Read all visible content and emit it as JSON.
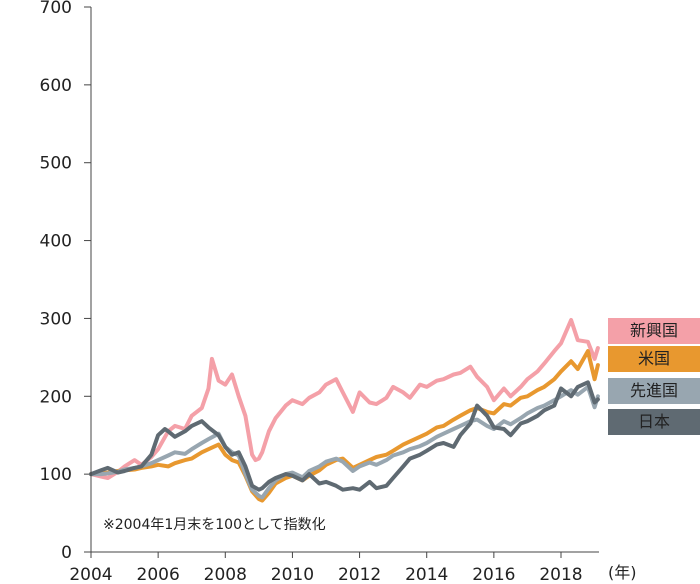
{
  "chart_data": {
    "type": "line",
    "ylim": [
      0,
      700
    ],
    "yticks": [
      "0",
      "100",
      "200",
      "300",
      "400",
      "500",
      "600",
      "700"
    ],
    "xlim": [
      2004.0,
      2019.1
    ],
    "xticks": [
      "2004",
      "2006",
      "2008",
      "2010",
      "2012",
      "2014",
      "2016",
      "2018"
    ],
    "x_unit": "(年)",
    "note": "※2004年1月末を100として指数化",
    "legend": "right",
    "series": [
      {
        "name": "新興国",
        "color": "#f4a0a8",
        "x": [
          2004.0,
          2004.3,
          2004.5,
          2004.8,
          2005.0,
          2005.3,
          2005.5,
          2005.8,
          2006.0,
          2006.3,
          2006.5,
          2006.8,
          2007.0,
          2007.3,
          2007.5,
          2007.6,
          2007.8,
          2008.0,
          2008.2,
          2008.4,
          2008.6,
          2008.8,
          2008.9,
          2009.0,
          2009.1,
          2009.3,
          2009.5,
          2009.8,
          2010.0,
          2010.3,
          2010.5,
          2010.8,
          2011.0,
          2011.3,
          2011.5,
          2011.8,
          2012.0,
          2012.3,
          2012.5,
          2012.8,
          2013.0,
          2013.3,
          2013.5,
          2013.8,
          2014.0,
          2014.3,
          2014.5,
          2014.8,
          2015.0,
          2015.3,
          2015.5,
          2015.8,
          2016.0,
          2016.3,
          2016.5,
          2016.8,
          2017.0,
          2017.3,
          2017.5,
          2017.8,
          2018.0,
          2018.3,
          2018.5,
          2018.8,
          2019.0,
          2019.1
        ],
        "values": [
          100,
          97,
          95,
          103,
          110,
          118,
          112,
          122,
          132,
          155,
          162,
          158,
          175,
          185,
          210,
          248,
          220,
          215,
          228,
          200,
          175,
          125,
          118,
          120,
          128,
          155,
          172,
          188,
          195,
          190,
          198,
          205,
          215,
          222,
          205,
          180,
          205,
          192,
          190,
          198,
          212,
          205,
          198,
          215,
          212,
          220,
          222,
          228,
          230,
          238,
          225,
          212,
          195,
          210,
          200,
          212,
          222,
          232,
          242,
          258,
          268,
          298,
          272,
          270,
          248,
          262
        ]
      },
      {
        "name": "米国",
        "color": "#e8982f",
        "x": [
          2004.0,
          2004.3,
          2004.5,
          2004.8,
          2005.0,
          2005.3,
          2005.5,
          2005.8,
          2006.0,
          2006.3,
          2006.5,
          2006.8,
          2007.0,
          2007.3,
          2007.5,
          2007.8,
          2008.0,
          2008.2,
          2008.4,
          2008.6,
          2008.8,
          2009.0,
          2009.1,
          2009.3,
          2009.5,
          2009.8,
          2010.0,
          2010.3,
          2010.5,
          2010.8,
          2011.0,
          2011.3,
          2011.5,
          2011.8,
          2012.0,
          2012.3,
          2012.5,
          2012.8,
          2013.0,
          2013.3,
          2013.5,
          2013.8,
          2014.0,
          2014.3,
          2014.5,
          2014.8,
          2015.0,
          2015.3,
          2015.5,
          2015.8,
          2016.0,
          2016.3,
          2016.5,
          2016.8,
          2017.0,
          2017.3,
          2017.5,
          2017.8,
          2018.0,
          2018.3,
          2018.5,
          2018.8,
          2019.0,
          2019.1
        ],
        "values": [
          100,
          101,
          102,
          104,
          105,
          106,
          108,
          110,
          112,
          110,
          114,
          118,
          120,
          128,
          132,
          138,
          125,
          118,
          115,
          98,
          78,
          68,
          66,
          76,
          88,
          95,
          98,
          92,
          98,
          105,
          112,
          118,
          120,
          108,
          112,
          118,
          122,
          125,
          130,
          138,
          142,
          148,
          152,
          160,
          162,
          170,
          175,
          182,
          185,
          180,
          178,
          190,
          188,
          198,
          200,
          208,
          212,
          222,
          232,
          245,
          235,
          258,
          222,
          240
        ]
      },
      {
        "name": "先進国",
        "color": "#98a6b0",
        "x": [
          2004.0,
          2004.3,
          2004.5,
          2004.8,
          2005.0,
          2005.3,
          2005.5,
          2005.8,
          2006.0,
          2006.3,
          2006.5,
          2006.8,
          2007.0,
          2007.3,
          2007.5,
          2007.8,
          2008.0,
          2008.2,
          2008.4,
          2008.6,
          2008.8,
          2009.0,
          2009.1,
          2009.3,
          2009.5,
          2009.8,
          2010.0,
          2010.3,
          2010.5,
          2010.8,
          2011.0,
          2011.3,
          2011.5,
          2011.8,
          2012.0,
          2012.3,
          2012.5,
          2012.8,
          2013.0,
          2013.3,
          2013.5,
          2013.8,
          2014.0,
          2014.3,
          2014.5,
          2014.8,
          2015.0,
          2015.3,
          2015.5,
          2015.8,
          2016.0,
          2016.3,
          2016.5,
          2016.8,
          2017.0,
          2017.3,
          2017.5,
          2017.8,
          2018.0,
          2018.3,
          2018.5,
          2018.8,
          2019.0,
          2019.1
        ],
        "values": [
          100,
          100,
          101,
          103,
          106,
          108,
          110,
          114,
          118,
          124,
          128,
          126,
          132,
          140,
          145,
          152,
          135,
          128,
          124,
          100,
          80,
          72,
          70,
          82,
          92,
          100,
          102,
          96,
          104,
          110,
          116,
          120,
          116,
          104,
          110,
          115,
          112,
          118,
          124,
          128,
          132,
          136,
          140,
          148,
          152,
          158,
          162,
          168,
          170,
          162,
          158,
          168,
          164,
          172,
          178,
          185,
          188,
          195,
          200,
          208,
          202,
          212,
          186,
          200
        ]
      },
      {
        "name": "日本",
        "color": "#5f6a72",
        "x": [
          2004.0,
          2004.3,
          2004.5,
          2004.8,
          2005.0,
          2005.3,
          2005.5,
          2005.8,
          2006.0,
          2006.2,
          2006.3,
          2006.5,
          2006.8,
          2007.0,
          2007.3,
          2007.5,
          2007.8,
          2008.0,
          2008.2,
          2008.4,
          2008.6,
          2008.8,
          2009.0,
          2009.1,
          2009.3,
          2009.5,
          2009.8,
          2010.0,
          2010.3,
          2010.5,
          2010.8,
          2011.0,
          2011.3,
          2011.5,
          2011.8,
          2012.0,
          2012.3,
          2012.5,
          2012.8,
          2013.0,
          2013.3,
          2013.5,
          2013.8,
          2014.0,
          2014.3,
          2014.5,
          2014.8,
          2015.0,
          2015.3,
          2015.5,
          2015.8,
          2016.0,
          2016.3,
          2016.5,
          2016.8,
          2017.0,
          2017.3,
          2017.5,
          2017.8,
          2018.0,
          2018.3,
          2018.5,
          2018.8,
          2019.0,
          2019.1
        ],
        "values": [
          100,
          105,
          108,
          102,
          104,
          108,
          110,
          125,
          150,
          158,
          155,
          148,
          155,
          162,
          168,
          160,
          150,
          135,
          125,
          128,
          110,
          85,
          80,
          82,
          90,
          95,
          100,
          98,
          92,
          100,
          88,
          90,
          85,
          80,
          82,
          80,
          90,
          82,
          85,
          95,
          110,
          120,
          125,
          130,
          138,
          140,
          135,
          150,
          165,
          188,
          175,
          160,
          158,
          150,
          165,
          168,
          175,
          182,
          188,
          210,
          200,
          212,
          218,
          192,
          196
        ]
      }
    ]
  }
}
